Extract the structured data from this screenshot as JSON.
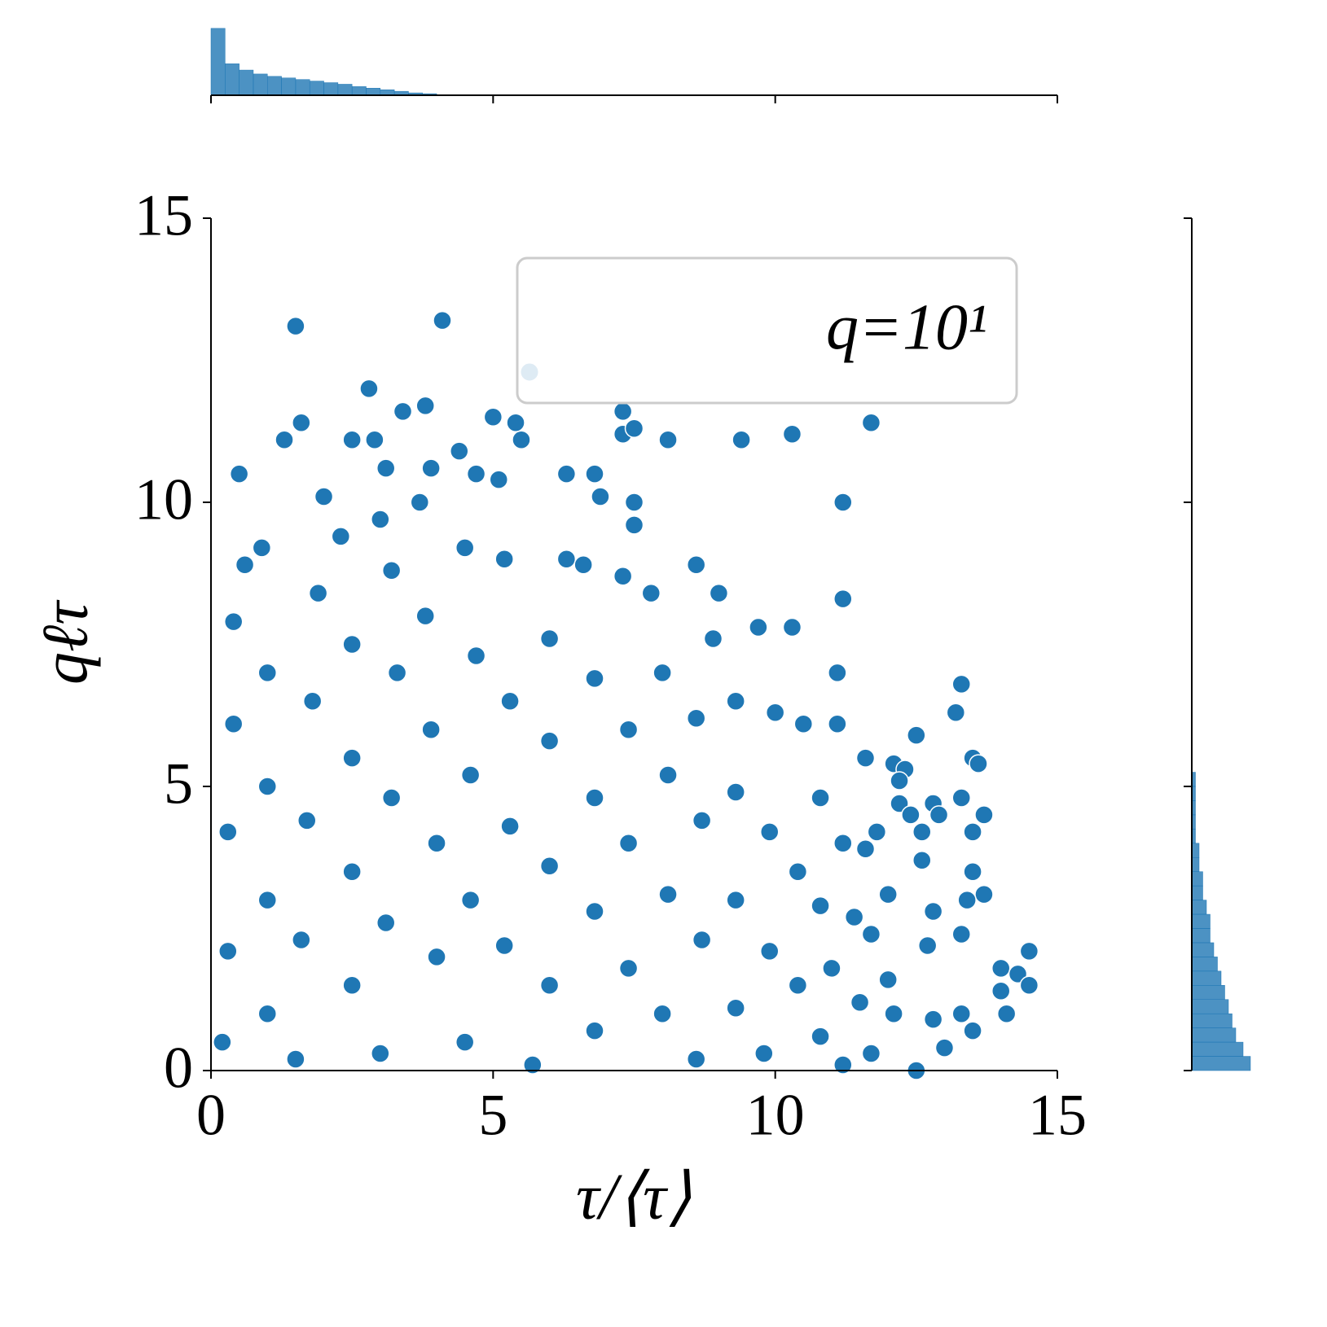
{
  "chart_data": [
    {
      "type": "scatter",
      "xlabel": "τ/⟨τ⟩",
      "ylabel": "qℓτ",
      "xlim": [
        0,
        15
      ],
      "ylim": [
        0,
        15
      ],
      "xticks": [
        0,
        5,
        10,
        15
      ],
      "yticks": [
        0,
        5,
        10,
        15
      ],
      "legend": "upper right",
      "series": [
        {
          "name": "q=10¹",
          "color": "#1f77b4",
          "x": [
            1.5,
            4.1,
            2.8,
            3.8,
            3.4,
            1.6,
            1.3,
            2.5,
            2.9,
            5.0,
            5.4,
            5.5,
            7.3,
            7.3,
            7.5,
            8.1,
            9.4,
            10.3,
            11.7,
            4.4,
            0.5,
            3.1,
            3.9,
            4.7,
            5.1,
            6.3,
            6.8,
            6.9,
            7.5,
            11.2,
            7.5,
            8.6,
            9.0,
            11.2,
            10.3,
            9.7,
            11.1,
            13.3,
            13.2,
            10.5,
            11.1,
            12.5,
            11.6,
            12.1,
            13.5,
            13.6,
            12.3,
            12.2,
            10.8,
            12.2,
            12.8,
            13.3,
            12.9,
            13.7,
            12.4,
            12.6,
            11.8,
            11.2,
            11.6,
            13.5,
            12.6,
            13.5,
            13.7,
            13.4,
            12.0,
            12.8,
            13.3,
            12.7,
            14.5,
            14.0,
            14.3,
            14.0,
            14.5,
            13.5,
            13.0,
            12.8,
            13.3,
            14.1,
            12.1,
            12.0,
            12.5,
            11.7,
            11.2,
            0.2,
            0.3,
            0.3,
            0.4,
            0.4,
            0.6,
            0.9,
            1.0,
            1.0,
            1.0,
            1.0,
            1.5,
            1.6,
            1.7,
            1.8,
            1.9,
            2.0,
            2.3,
            2.5,
            2.5,
            2.5,
            2.5,
            3.0,
            3.1,
            3.2,
            3.3,
            3.2,
            3.0,
            3.7,
            3.8,
            3.9,
            4.0,
            4.0,
            4.5,
            4.6,
            4.6,
            4.7,
            4.5,
            5.2,
            5.3,
            5.3,
            5.2,
            5.7,
            6.0,
            6.0,
            6.0,
            6.0,
            6.3,
            6.6,
            6.8,
            6.8,
            6.8,
            6.8,
            7.4,
            7.4,
            7.4,
            7.3,
            7.8,
            8.0,
            8.1,
            8.1,
            8.0,
            8.6,
            8.7,
            8.7,
            8.6,
            8.9,
            9.3,
            9.3,
            9.3,
            9.3,
            9.8,
            9.9,
            9.9,
            10.0,
            10.4,
            10.4,
            10.8,
            10.8,
            11.0,
            11.4,
            11.5,
            11.7
          ],
          "values": [
            13.1,
            13.2,
            12.0,
            11.7,
            11.6,
            11.4,
            11.1,
            11.1,
            11.1,
            11.5,
            11.4,
            11.1,
            11.6,
            11.2,
            11.3,
            11.1,
            11.1,
            11.2,
            11.4,
            10.9,
            10.5,
            10.6,
            10.6,
            10.5,
            10.4,
            10.5,
            10.5,
            10.1,
            10.0,
            10.0,
            9.6,
            8.9,
            8.4,
            8.3,
            7.8,
            7.8,
            7.0,
            6.8,
            6.3,
            6.1,
            6.1,
            5.9,
            5.5,
            5.4,
            5.5,
            5.4,
            5.3,
            5.1,
            4.8,
            4.7,
            4.7,
            4.8,
            4.5,
            4.5,
            4.5,
            4.2,
            4.2,
            4.0,
            3.9,
            4.2,
            3.7,
            3.5,
            3.1,
            3.0,
            3.1,
            2.8,
            2.4,
            2.2,
            2.1,
            1.8,
            1.7,
            1.4,
            1.5,
            0.7,
            0.4,
            0.9,
            1.0,
            1.0,
            1.0,
            1.6,
            0.0,
            0.3,
            0.1,
            0.5,
            2.1,
            4.2,
            6.1,
            7.9,
            8.9,
            9.2,
            7.0,
            5.0,
            3.0,
            1.0,
            0.2,
            2.3,
            4.4,
            6.5,
            8.4,
            10.1,
            9.4,
            7.5,
            5.5,
            3.5,
            1.5,
            0.3,
            2.6,
            4.8,
            7.0,
            8.8,
            9.7,
            10.0,
            8.0,
            6.0,
            4.0,
            2.0,
            0.5,
            3.0,
            5.2,
            7.3,
            9.2,
            9.0,
            6.5,
            4.3,
            2.2,
            0.1,
            1.5,
            3.6,
            5.8,
            7.6,
            9.0,
            8.9,
            6.9,
            4.8,
            2.8,
            0.7,
            1.8,
            4.0,
            6.0,
            8.7,
            8.4,
            7.0,
            5.2,
            3.1,
            1.0,
            0.2,
            2.3,
            4.4,
            6.2,
            7.6,
            6.5,
            4.9,
            3.0,
            1.1,
            0.3,
            2.1,
            4.2,
            6.3,
            3.5,
            1.5,
            0.6,
            2.9,
            1.8,
            2.7,
            1.2,
            2.4
          ]
        }
      ]
    },
    {
      "type": "histogram",
      "orientation": "vertical",
      "color": "#1f77b4",
      "bins": [
        0,
        0.25,
        0.5,
        0.75,
        1,
        1.25,
        1.5,
        1.75,
        2,
        2.25,
        2.5,
        2.75,
        3,
        3.25,
        3.5,
        3.75,
        4
      ],
      "values": [
        85,
        40,
        32,
        27,
        24,
        22,
        20,
        18,
        16,
        14,
        11,
        9,
        7,
        5,
        3,
        2
      ],
      "xlim": [
        0,
        15
      ],
      "xticks": [
        0,
        5,
        10,
        15
      ],
      "ylim": [
        0,
        90
      ]
    },
    {
      "type": "histogram",
      "orientation": "horizontal",
      "color": "#1f77b4",
      "bins": [
        0,
        0.25,
        0.5,
        0.75,
        1,
        1.25,
        1.5,
        1.75,
        2,
        2.25,
        2.5,
        2.75,
        3,
        3.25,
        3.5,
        3.75,
        4,
        4.25,
        4.5,
        4.75,
        5,
        5.25
      ],
      "values": [
        16,
        14,
        12,
        11,
        10,
        9,
        8,
        7,
        6,
        5,
        5,
        4,
        3,
        3,
        2,
        2,
        1,
        1,
        1,
        1,
        1
      ],
      "ylim": [
        0,
        15
      ],
      "yticks": [
        0,
        5,
        10,
        15
      ],
      "xlim": [
        0,
        16
      ]
    }
  ]
}
